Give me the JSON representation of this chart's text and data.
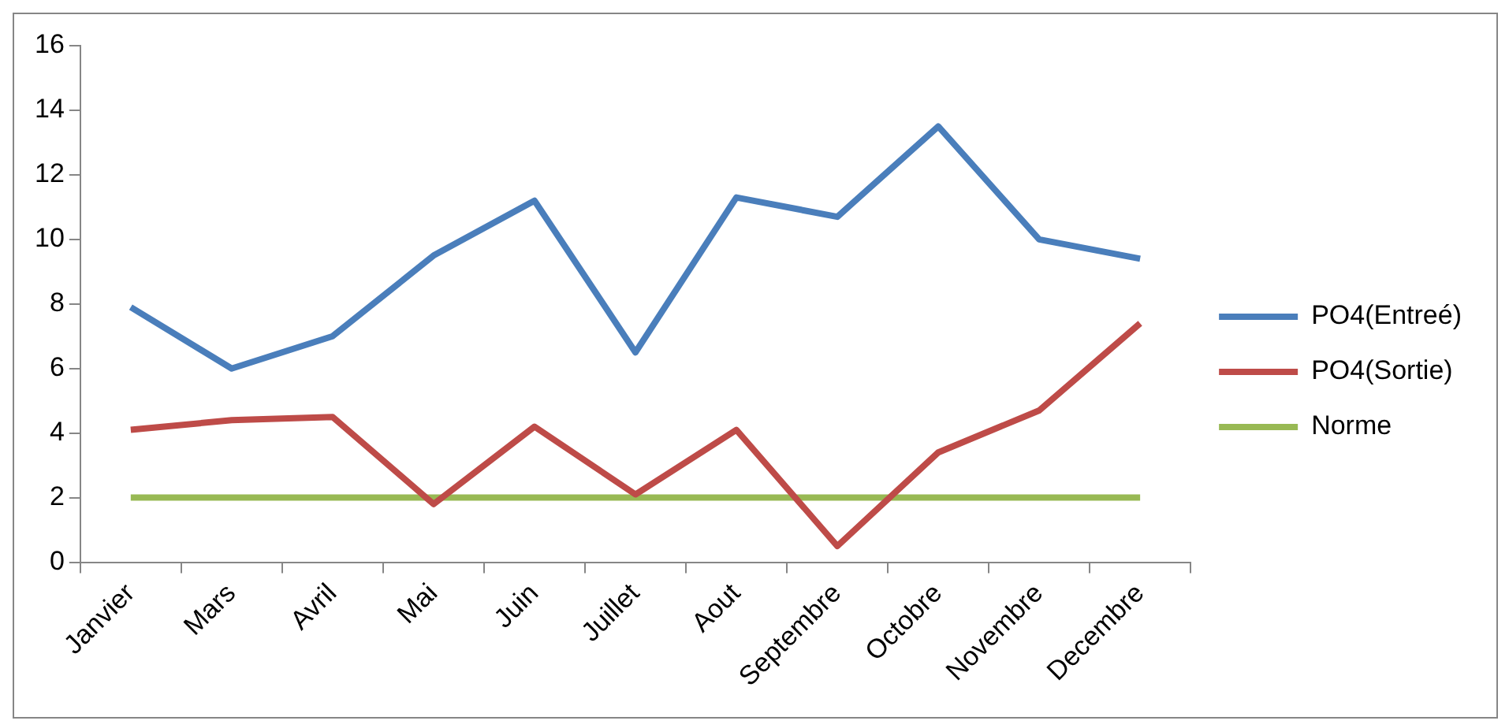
{
  "chart_data": {
    "type": "line",
    "categories": [
      "Janvier",
      "Mars",
      "Avril",
      "Mai",
      "Juin",
      "Juillet",
      "Aout",
      "Septembre",
      "Octobre",
      "Novembre",
      "Decembre"
    ],
    "series": [
      {
        "name": "PO4(Entreé)",
        "color": "#4a7ebb",
        "values": [
          7.9,
          6.0,
          7.0,
          9.5,
          11.2,
          6.5,
          11.3,
          10.7,
          13.5,
          10.0,
          9.4
        ]
      },
      {
        "name": "PO4(Sortie)",
        "color": "#be4b48",
        "values": [
          4.1,
          4.4,
          4.5,
          1.8,
          4.2,
          2.1,
          4.1,
          0.5,
          3.4,
          4.7,
          7.4
        ]
      },
      {
        "name": "Norme",
        "color": "#98b954",
        "values": [
          2,
          2,
          2,
          2,
          2,
          2,
          2,
          2,
          2,
          2,
          2
        ]
      }
    ],
    "ylim": [
      0,
      16
    ],
    "yticks": [
      0,
      2,
      4,
      6,
      8,
      10,
      12,
      14,
      16
    ],
    "grid": false,
    "legend": "right",
    "marker": "none",
    "line_style": "solid"
  }
}
